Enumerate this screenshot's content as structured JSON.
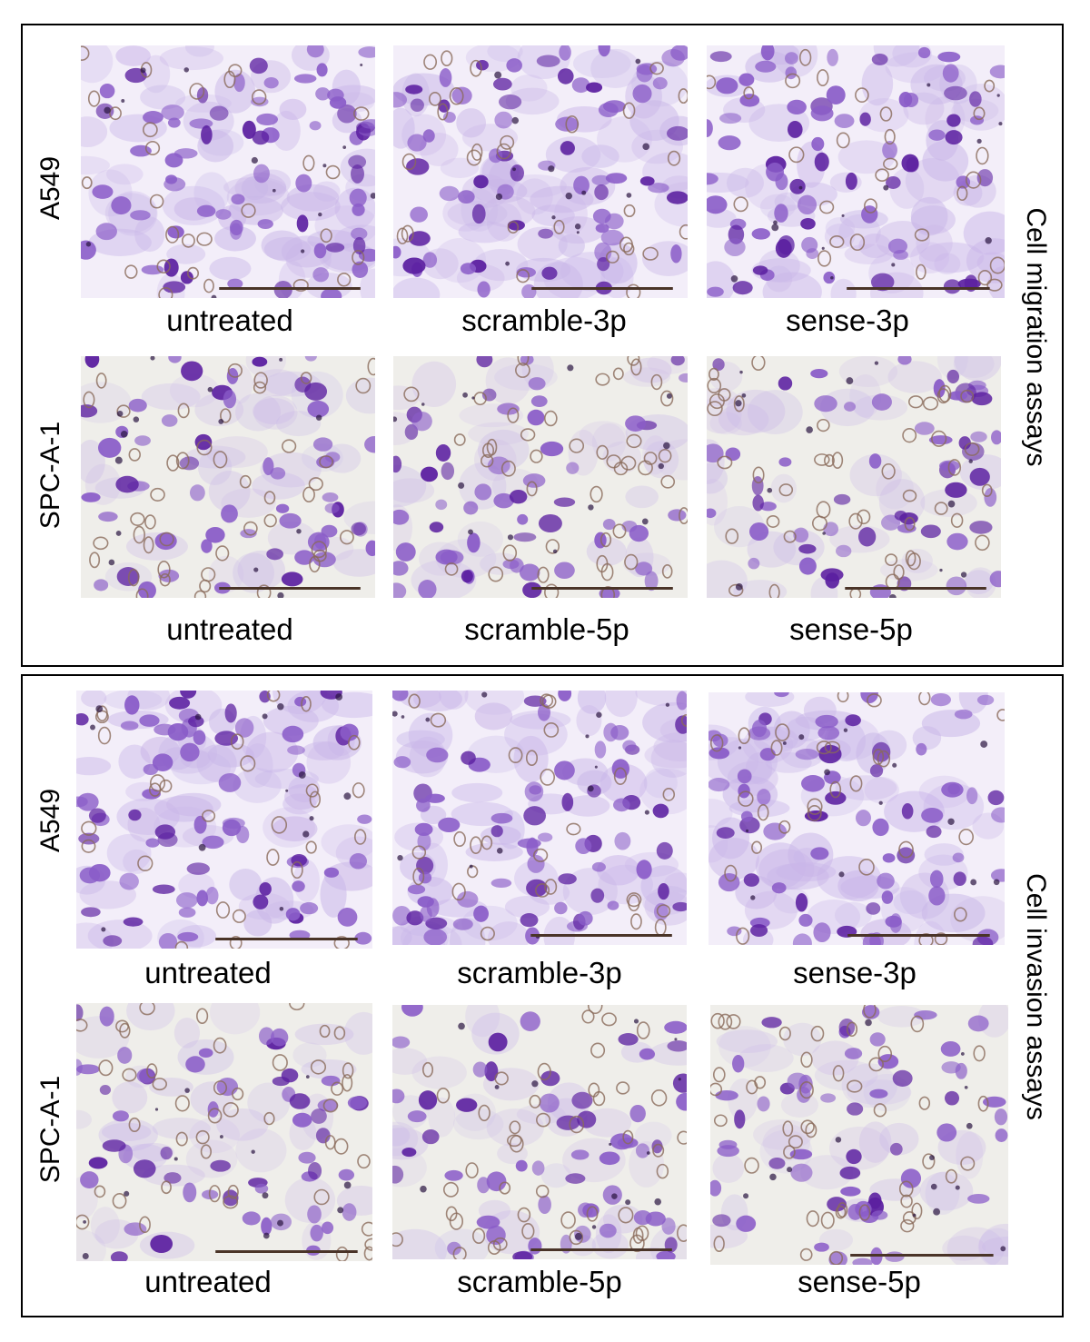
{
  "migration": {
    "side_label": "Cell migration assays",
    "rows": [
      {
        "label": "A549",
        "images": [
          {
            "caption": "untreated",
            "style": "dense",
            "seed": 11
          },
          {
            "caption": "scramble-3p",
            "style": "dense",
            "seed": 23
          },
          {
            "caption": "sense-3p",
            "style": "dense",
            "seed": 37
          }
        ]
      },
      {
        "label": "SPC-A-1",
        "images": [
          {
            "caption": "untreated",
            "style": "sparse",
            "seed": 41
          },
          {
            "caption": "scramble-5p",
            "style": "sparse",
            "seed": 53
          },
          {
            "caption": "sense-5p",
            "style": "sparse",
            "seed": 67
          }
        ]
      }
    ]
  },
  "invasion": {
    "side_label": "Cell invasion assays",
    "rows": [
      {
        "label": "A549",
        "images": [
          {
            "caption": "untreated",
            "style": "dense",
            "seed": 71
          },
          {
            "caption": "scramble-3p",
            "style": "dense",
            "seed": 83
          },
          {
            "caption": "sense-3p",
            "style": "dense",
            "seed": 97
          }
        ]
      },
      {
        "label": "SPC-A-1",
        "images": [
          {
            "caption": "untreated",
            "style": "sparse",
            "seed": 101
          },
          {
            "caption": "scramble-5p",
            "style": "sparse",
            "seed": 113
          },
          {
            "caption": "sense-5p",
            "style": "sparse",
            "seed": 127
          }
        ]
      }
    ]
  },
  "colors": {
    "stain_dark": "#5b1fa0",
    "stain_mid": "#8a5cc8",
    "stain_light": "#c9b6e8",
    "pore_ring": "#8a6a5a",
    "scale_bar": "#4a3428"
  }
}
